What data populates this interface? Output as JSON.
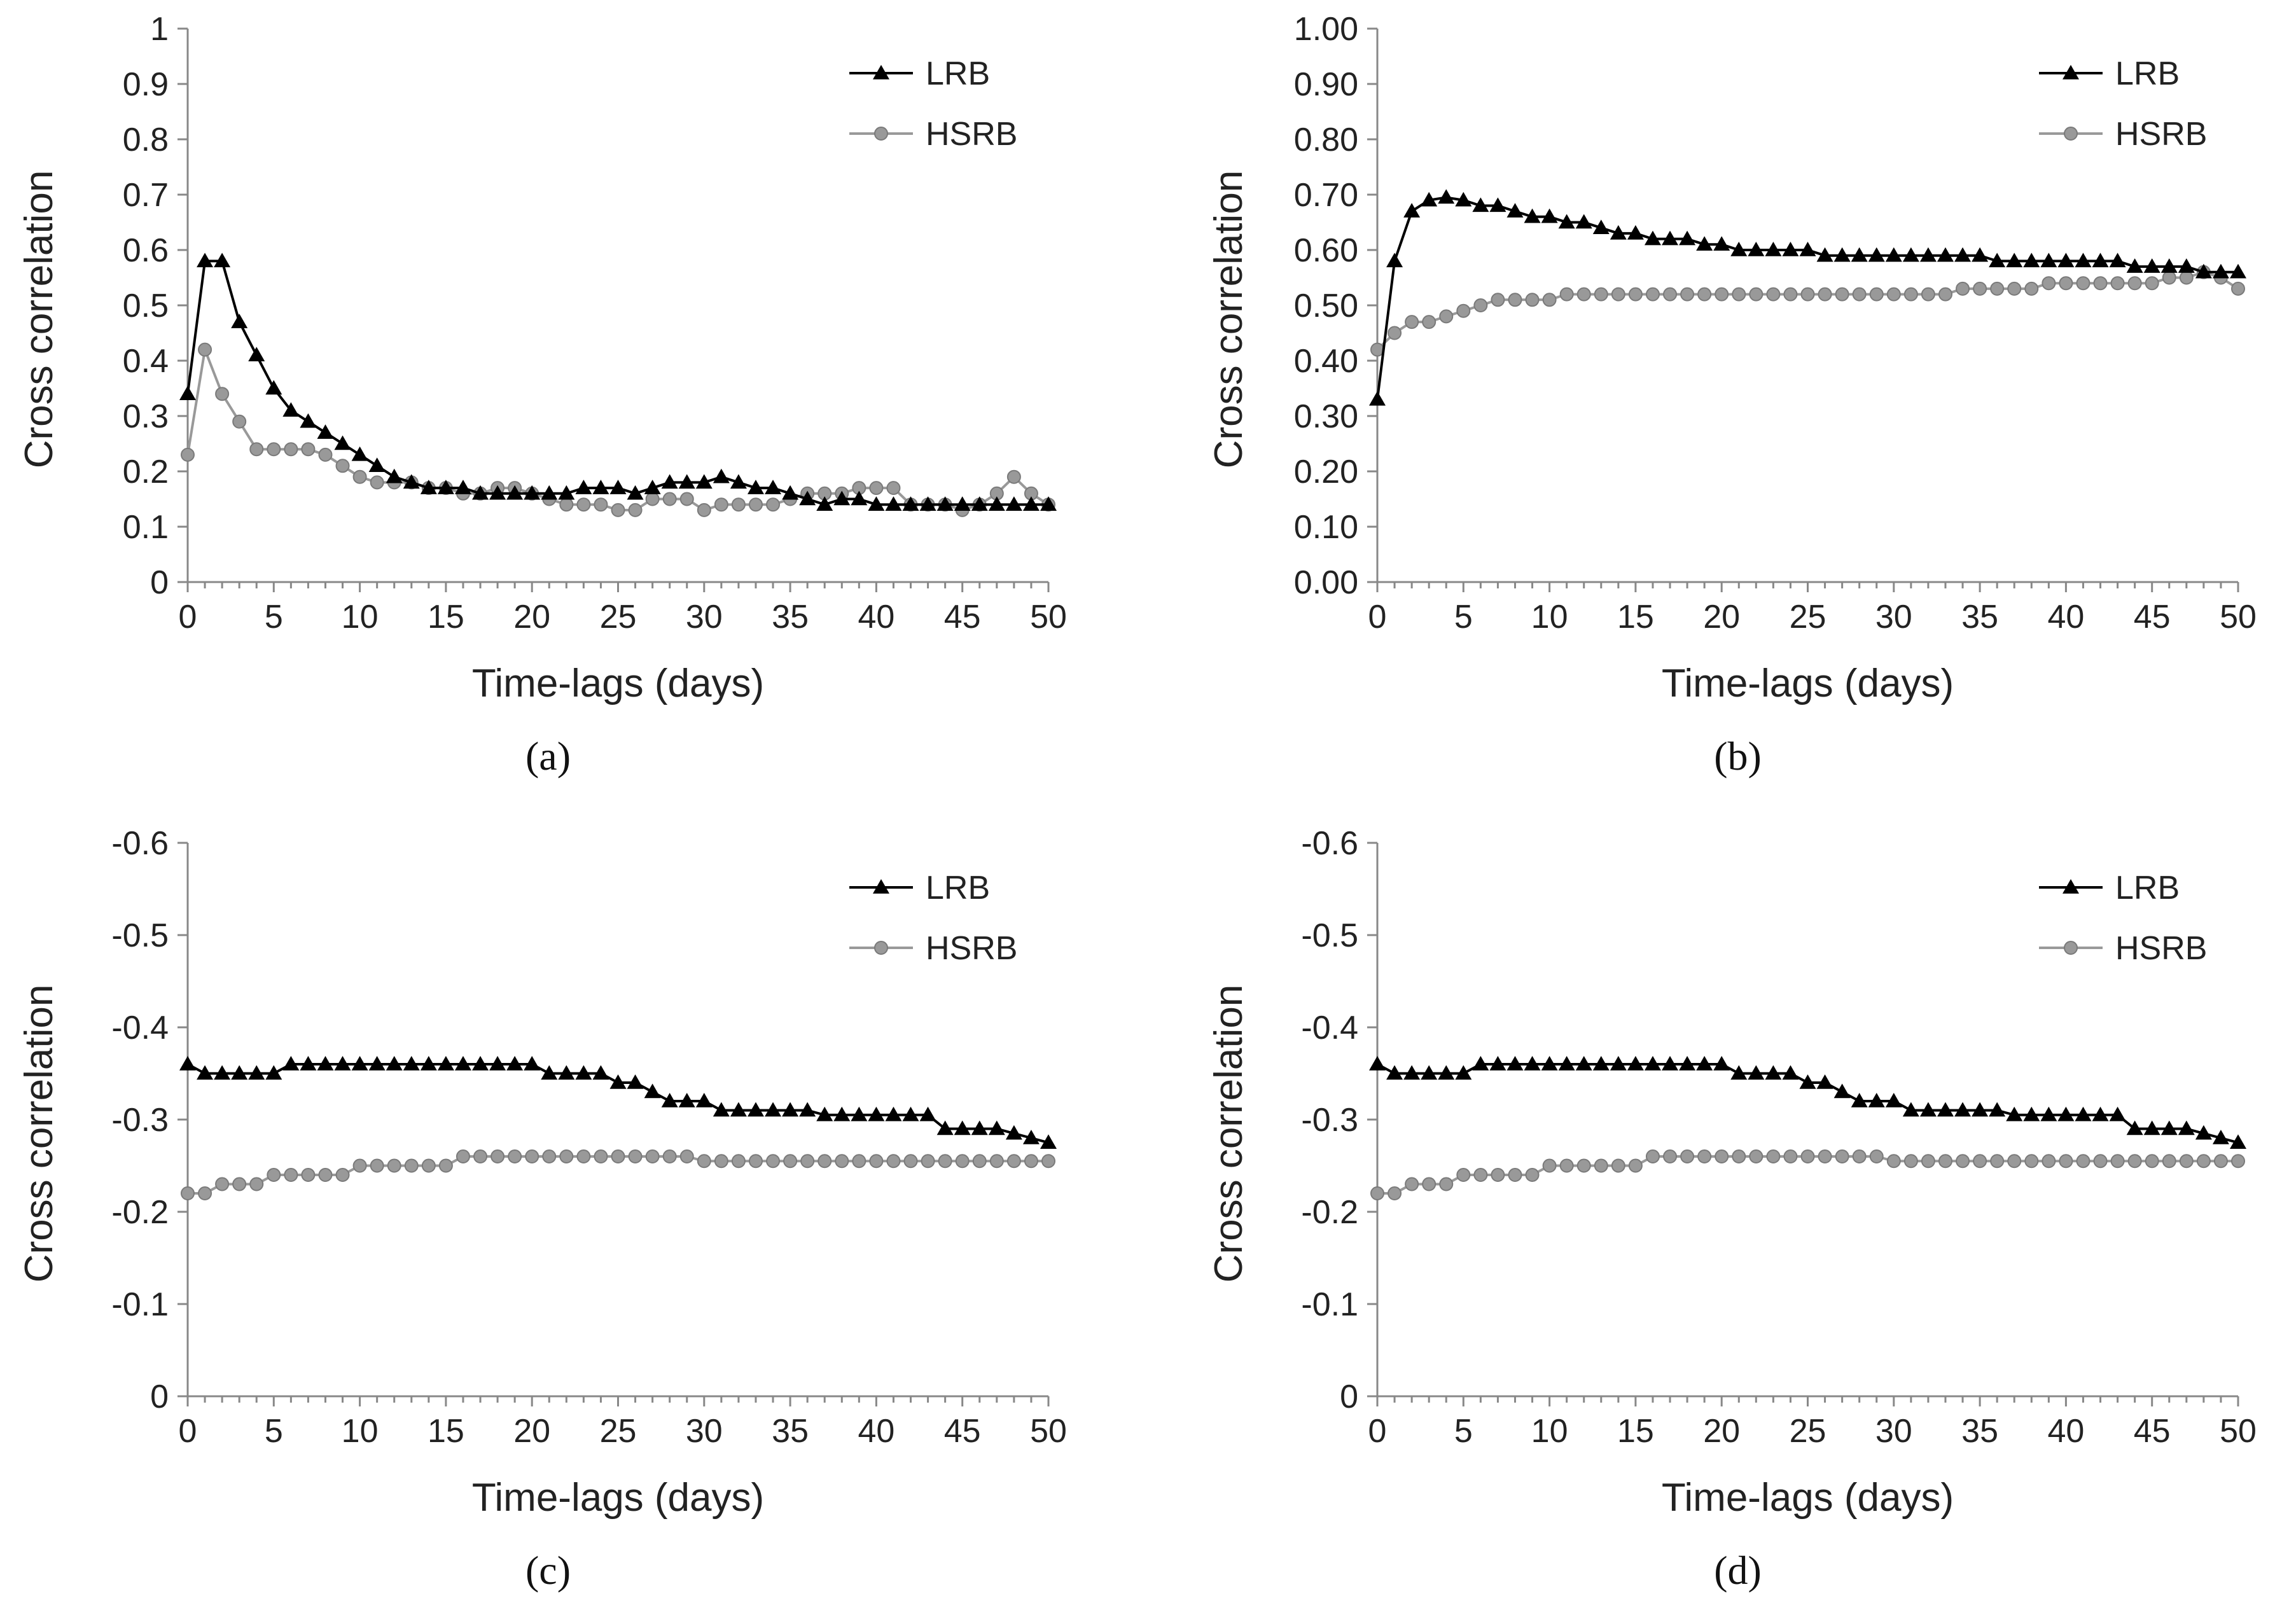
{
  "chart_data": [
    {
      "type": "line",
      "panel": "(a)",
      "panel_letter": "a",
      "xlabel": "Time-lags (days)",
      "ylabel": "Cross correlation",
      "xlim": [
        0,
        50
      ],
      "ylim": [
        0,
        1
      ],
      "y_inverted": false,
      "xticks": [
        0,
        5,
        10,
        15,
        20,
        25,
        30,
        35,
        40,
        45,
        50
      ],
      "yticks": [
        0,
        0.1,
        0.2,
        0.3,
        0.4,
        0.5,
        0.6,
        0.7,
        0.8,
        0.9,
        1
      ],
      "ytick_labels": [
        "0",
        "0.1",
        "0.2",
        "0.3",
        "0.4",
        "0.5",
        "0.6",
        "0.7",
        "0.8",
        "0.9",
        "1"
      ],
      "legend": "top-right",
      "grid": false,
      "series": [
        {
          "name": "LRB",
          "marker": "triangle",
          "color": "#000000",
          "values": [
            0.34,
            0.58,
            0.58,
            0.47,
            0.41,
            0.35,
            0.31,
            0.29,
            0.27,
            0.25,
            0.23,
            0.21,
            0.19,
            0.18,
            0.17,
            0.17,
            0.17,
            0.16,
            0.16,
            0.16,
            0.16,
            0.16,
            0.16,
            0.17,
            0.17,
            0.17,
            0.16,
            0.17,
            0.18,
            0.18,
            0.18,
            0.19,
            0.18,
            0.17,
            0.17,
            0.16,
            0.15,
            0.14,
            0.15,
            0.15,
            0.14,
            0.14,
            0.14,
            0.14,
            0.14,
            0.14,
            0.14,
            0.14,
            0.14,
            0.14,
            0.14
          ]
        },
        {
          "name": "HSRB",
          "marker": "circle",
          "color": "#999999",
          "values": [
            0.23,
            0.42,
            0.34,
            0.29,
            0.24,
            0.24,
            0.24,
            0.24,
            0.23,
            0.21,
            0.19,
            0.18,
            0.18,
            0.18,
            0.17,
            0.17,
            0.16,
            0.16,
            0.17,
            0.17,
            0.16,
            0.15,
            0.14,
            0.14,
            0.14,
            0.13,
            0.13,
            0.15,
            0.15,
            0.15,
            0.13,
            0.14,
            0.14,
            0.14,
            0.14,
            0.15,
            0.16,
            0.16,
            0.16,
            0.17,
            0.17,
            0.17,
            0.14,
            0.14,
            0.14,
            0.13,
            0.14,
            0.16,
            0.19,
            0.16,
            0.14
          ]
        }
      ]
    },
    {
      "type": "line",
      "panel": "(b)",
      "panel_letter": "b",
      "xlabel": "Time-lags (days)",
      "ylabel": "Cross correlation",
      "xlim": [
        0,
        50
      ],
      "ylim": [
        0,
        1
      ],
      "y_inverted": false,
      "xticks": [
        0,
        5,
        10,
        15,
        20,
        25,
        30,
        35,
        40,
        45,
        50
      ],
      "yticks": [
        0,
        0.1,
        0.2,
        0.3,
        0.4,
        0.5,
        0.6,
        0.7,
        0.8,
        0.9,
        1
      ],
      "ytick_labels": [
        "0.00",
        "0.10",
        "0.20",
        "0.30",
        "0.40",
        "0.50",
        "0.60",
        "0.70",
        "0.80",
        "0.90",
        "1.00"
      ],
      "legend": "top-right",
      "grid": false,
      "series": [
        {
          "name": "LRB",
          "marker": "triangle",
          "color": "#000000",
          "values": [
            0.33,
            0.58,
            0.67,
            0.69,
            0.695,
            0.69,
            0.68,
            0.68,
            0.67,
            0.66,
            0.66,
            0.65,
            0.65,
            0.64,
            0.63,
            0.63,
            0.62,
            0.62,
            0.62,
            0.61,
            0.61,
            0.6,
            0.6,
            0.6,
            0.6,
            0.6,
            0.59,
            0.59,
            0.59,
            0.59,
            0.59,
            0.59,
            0.59,
            0.59,
            0.59,
            0.59,
            0.58,
            0.58,
            0.58,
            0.58,
            0.58,
            0.58,
            0.58,
            0.58,
            0.57,
            0.57,
            0.57,
            0.57,
            0.56,
            0.56,
            0.56
          ]
        },
        {
          "name": "HSRB",
          "marker": "circle",
          "color": "#999999",
          "values": [
            0.42,
            0.45,
            0.47,
            0.47,
            0.48,
            0.49,
            0.5,
            0.51,
            0.51,
            0.51,
            0.51,
            0.52,
            0.52,
            0.52,
            0.52,
            0.52,
            0.52,
            0.52,
            0.52,
            0.52,
            0.52,
            0.52,
            0.52,
            0.52,
            0.52,
            0.52,
            0.52,
            0.52,
            0.52,
            0.52,
            0.52,
            0.52,
            0.52,
            0.52,
            0.53,
            0.53,
            0.53,
            0.53,
            0.53,
            0.54,
            0.54,
            0.54,
            0.54,
            0.54,
            0.54,
            0.54,
            0.55,
            0.55,
            0.56,
            0.55,
            0.53
          ]
        }
      ]
    },
    {
      "type": "line",
      "panel": "(c)",
      "panel_letter": "c",
      "xlabel": "Time-lags (days)",
      "ylabel": "Cross correlation",
      "xlim": [
        0,
        50
      ],
      "ylim": [
        0,
        -0.6
      ],
      "y_inverted": true,
      "xticks": [
        0,
        5,
        10,
        15,
        20,
        25,
        30,
        35,
        40,
        45,
        50
      ],
      "yticks": [
        0,
        -0.1,
        -0.2,
        -0.3,
        -0.4,
        -0.5,
        -0.6
      ],
      "ytick_labels": [
        "0",
        "-0.1",
        "-0.2",
        "-0.3",
        "-0.4",
        "-0.5",
        "-0.6"
      ],
      "legend": "top-right",
      "grid": false,
      "series": [
        {
          "name": "LRB",
          "marker": "triangle",
          "color": "#000000",
          "values": [
            -0.36,
            -0.35,
            -0.35,
            -0.35,
            -0.35,
            -0.35,
            -0.36,
            -0.36,
            -0.36,
            -0.36,
            -0.36,
            -0.36,
            -0.36,
            -0.36,
            -0.36,
            -0.36,
            -0.36,
            -0.36,
            -0.36,
            -0.36,
            -0.36,
            -0.35,
            -0.35,
            -0.35,
            -0.35,
            -0.34,
            -0.34,
            -0.33,
            -0.32,
            -0.32,
            -0.32,
            -0.31,
            -0.31,
            -0.31,
            -0.31,
            -0.31,
            -0.31,
            -0.305,
            -0.305,
            -0.305,
            -0.305,
            -0.305,
            -0.305,
            -0.305,
            -0.29,
            -0.29,
            -0.29,
            -0.29,
            -0.285,
            -0.28,
            -0.275
          ]
        },
        {
          "name": "HSRB",
          "marker": "circle",
          "color": "#999999",
          "values": [
            -0.22,
            -0.22,
            -0.23,
            -0.23,
            -0.23,
            -0.24,
            -0.24,
            -0.24,
            -0.24,
            -0.24,
            -0.25,
            -0.25,
            -0.25,
            -0.25,
            -0.25,
            -0.25,
            -0.26,
            -0.26,
            -0.26,
            -0.26,
            -0.26,
            -0.26,
            -0.26,
            -0.26,
            -0.26,
            -0.26,
            -0.26,
            -0.26,
            -0.26,
            -0.26,
            -0.255,
            -0.255,
            -0.255,
            -0.255,
            -0.255,
            -0.255,
            -0.255,
            -0.255,
            -0.255,
            -0.255,
            -0.255,
            -0.255,
            -0.255,
            -0.255,
            -0.255,
            -0.255,
            -0.255,
            -0.255,
            -0.255,
            -0.255,
            -0.255
          ]
        }
      ]
    },
    {
      "type": "line",
      "panel": "(d)",
      "panel_letter": "d",
      "xlabel": "Time-lags (days)",
      "ylabel": "Cross correlation",
      "xlim": [
        0,
        50
      ],
      "ylim": [
        0,
        -0.6
      ],
      "y_inverted": true,
      "xticks": [
        0,
        5,
        10,
        15,
        20,
        25,
        30,
        35,
        40,
        45,
        50
      ],
      "yticks": [
        0,
        -0.1,
        -0.2,
        -0.3,
        -0.4,
        -0.5,
        -0.6
      ],
      "ytick_labels": [
        "0",
        "-0.1",
        "-0.2",
        "-0.3",
        "-0.4",
        "-0.5",
        "-0.6"
      ],
      "legend": "top-right",
      "grid": false,
      "series": [
        {
          "name": "LRB",
          "marker": "triangle",
          "color": "#000000",
          "values": [
            -0.36,
            -0.35,
            -0.35,
            -0.35,
            -0.35,
            -0.35,
            -0.36,
            -0.36,
            -0.36,
            -0.36,
            -0.36,
            -0.36,
            -0.36,
            -0.36,
            -0.36,
            -0.36,
            -0.36,
            -0.36,
            -0.36,
            -0.36,
            -0.36,
            -0.35,
            -0.35,
            -0.35,
            -0.35,
            -0.34,
            -0.34,
            -0.33,
            -0.32,
            -0.32,
            -0.32,
            -0.31,
            -0.31,
            -0.31,
            -0.31,
            -0.31,
            -0.31,
            -0.305,
            -0.305,
            -0.305,
            -0.305,
            -0.305,
            -0.305,
            -0.305,
            -0.29,
            -0.29,
            -0.29,
            -0.29,
            -0.285,
            -0.28,
            -0.275
          ]
        },
        {
          "name": "HSRB",
          "marker": "circle",
          "color": "#999999",
          "values": [
            -0.22,
            -0.22,
            -0.23,
            -0.23,
            -0.23,
            -0.24,
            -0.24,
            -0.24,
            -0.24,
            -0.24,
            -0.25,
            -0.25,
            -0.25,
            -0.25,
            -0.25,
            -0.25,
            -0.26,
            -0.26,
            -0.26,
            -0.26,
            -0.26,
            -0.26,
            -0.26,
            -0.26,
            -0.26,
            -0.26,
            -0.26,
            -0.26,
            -0.26,
            -0.26,
            -0.255,
            -0.255,
            -0.255,
            -0.255,
            -0.255,
            -0.255,
            -0.255,
            -0.255,
            -0.255,
            -0.255,
            -0.255,
            -0.255,
            -0.255,
            -0.255,
            -0.255,
            -0.255,
            -0.255,
            -0.255,
            -0.255,
            -0.255,
            -0.255
          ]
        }
      ]
    }
  ]
}
